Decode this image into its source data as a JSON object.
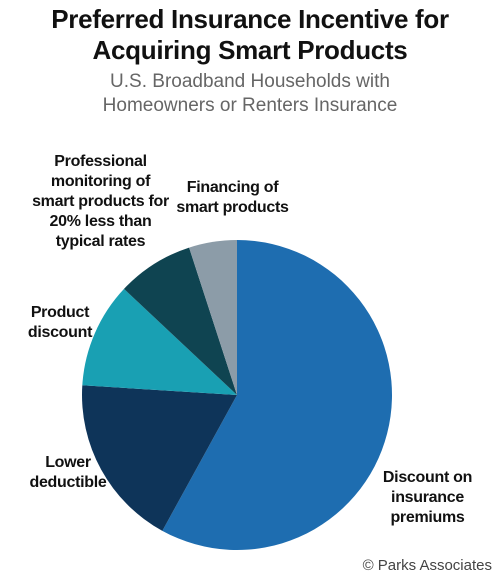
{
  "chart_data": {
    "type": "pie",
    "title": "Preferred Insurance Incentive for Acquiring Smart Products",
    "subtitle": "U.S. Broadband Households with Homeowners or Renters Insurance",
    "categories": [
      "Discount on insurance premiums",
      "Lower deductible",
      "Product discount",
      "Professional monitoring of smart products for 20% less than typical rates",
      "Financing of smart products"
    ],
    "values": [
      58,
      18,
      11,
      8,
      5
    ],
    "colors": [
      "#1e6db0",
      "#0e3459",
      "#19a0b3",
      "#0f4451",
      "#8c9ca8"
    ],
    "source": "© Parks Associates"
  }
}
